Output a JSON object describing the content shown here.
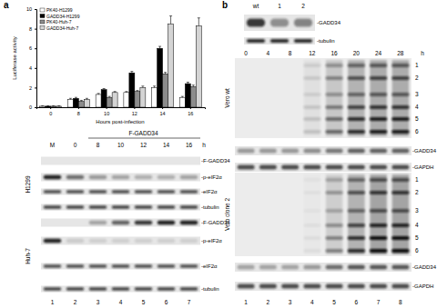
{
  "chart_data": {
    "type": "bar",
    "x_label": "Hours post-infection",
    "y_label": "Luciferase activity",
    "categories": [
      "0",
      "8",
      "10",
      "12",
      "14",
      "16"
    ],
    "series": [
      {
        "name": "PK40-H1299",
        "color": "#ffffff",
        "values": [
          0.1,
          0.8,
          1.3,
          1.5,
          2.0,
          1.0
        ],
        "errors": [
          0.05,
          0.1,
          0.1,
          0.1,
          0.15,
          0.1
        ]
      },
      {
        "name": "GADD34-H1299",
        "color": "#000000",
        "values": [
          0.1,
          0.9,
          1.8,
          3.5,
          6.0,
          2.4
        ],
        "errors": [
          0.05,
          0.1,
          0.1,
          0.15,
          0.2,
          0.15
        ]
      },
      {
        "name": "PK40-Huh-7",
        "color": "#8c8c8c",
        "values": [
          0.1,
          0.6,
          1.0,
          1.6,
          3.4,
          2.1
        ],
        "errors": [
          0.05,
          0.1,
          0.1,
          0.1,
          0.15,
          0.15
        ]
      },
      {
        "name": "GADD34-Huh-7",
        "color": "#d4d4d4",
        "values": [
          0.1,
          0.8,
          1.5,
          2.0,
          8.5,
          8.3
        ],
        "errors": [
          0.05,
          0.1,
          0.1,
          0.15,
          0.8,
          0.8
        ]
      }
    ],
    "ylim": [
      0,
      10
    ],
    "yticks": [
      0,
      2,
      4,
      6,
      8,
      10
    ],
    "legend": "upper left",
    "grid": false
  },
  "panels": {
    "a": {
      "label": "a",
      "header": "F-GADD34",
      "lanes": [
        "M",
        "0",
        "8",
        "10",
        "12",
        "14",
        "16",
        "h"
      ],
      "cell_lines": [
        "H1299",
        "Huh-7"
      ],
      "rows": [
        "-F-GADD34",
        "-p-eIF2α",
        "-eIF2α",
        "-tubulin"
      ],
      "lane_numbers": [
        "1",
        "2",
        "3",
        "4",
        "5",
        "6",
        "7"
      ]
    },
    "b": {
      "label": "b",
      "top": {
        "lanes": [
          "wt",
          "1",
          "2"
        ],
        "rows": [
          "-GADD34",
          "-tubulin"
        ]
      },
      "time": [
        "0",
        "4",
        "8",
        "12",
        "16",
        "20",
        "24",
        "28",
        "h"
      ],
      "blots": [
        {
          "name": "Vero wt",
          "bands": [
            "1",
            "2",
            "3",
            "4",
            "5",
            "6"
          ],
          "rows": [
            "-GADD34",
            "-GAPDH"
          ]
        },
        {
          "name": "Vero clone 2",
          "bands": [
            "1",
            "2",
            "3",
            "4",
            "5",
            "6"
          ],
          "rows": [
            "-GADD34",
            "-GAPDH"
          ]
        }
      ],
      "lane_numbers": [
        "1",
        "2",
        "3",
        "4",
        "5",
        "6",
        "7",
        "8"
      ]
    }
  }
}
